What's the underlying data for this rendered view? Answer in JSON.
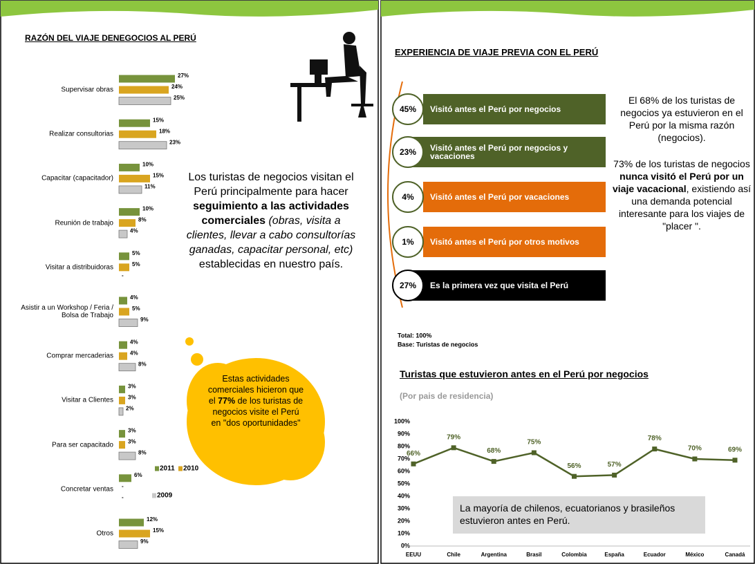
{
  "chart_data": [
    {
      "type": "hbar",
      "title": "RAZÓN DEL VIAJE DENEGOCIOS AL PERÚ",
      "categories": [
        "Supervisar obras",
        "Realizar consultorias",
        "Capacitar (capacitador)",
        "Reunión de trabajo",
        "Visitar a distribuidoras",
        "Asistir a un Workshop / Feria / Bolsa de Trabajo",
        "Comprar mercaderias",
        "Visitar a Clientes",
        "Para ser capacitado",
        "Concretar ventas",
        "Otros"
      ],
      "series": [
        {
          "name": "2011",
          "color": "#77933c",
          "values": [
            27,
            15,
            10,
            10,
            5,
            4,
            4,
            3,
            3,
            6,
            12
          ],
          "value_labels": [
            "27%",
            "15%",
            "10%",
            "10%",
            "5%",
            "4%",
            "4%",
            "3%",
            "3%",
            "6%",
            "12%"
          ]
        },
        {
          "name": "2010",
          "color": "#d9a520",
          "values": [
            24,
            18,
            15,
            8,
            5,
            5,
            4,
            3,
            3,
            null,
            15
          ],
          "value_labels": [
            "24%",
            "18%",
            "15%",
            "8%",
            "5%",
            "5%",
            "4%",
            "3%",
            "3%",
            "-",
            "15%"
          ]
        },
        {
          "name": "2009",
          "color": "#c8c8c8",
          "values": [
            25,
            23,
            11,
            4,
            null,
            9,
            8,
            2,
            8,
            null,
            9
          ],
          "value_labels": [
            "25%",
            "23%",
            "11%",
            "4%",
            "-",
            "9%",
            "8%",
            "2%",
            "8%",
            "-",
            "9%"
          ]
        }
      ]
    },
    {
      "type": "line",
      "title": "Turistas que estuvieron antes en el Perú por negocios",
      "subtitle": "(Por pais de residencia)",
      "categories": [
        "EEUU",
        "Chile",
        "Argentina",
        "Brasil",
        "Colombia",
        "España",
        "Ecuador",
        "México",
        "Canadá"
      ],
      "values": [
        66,
        79,
        68,
        75,
        56,
        57,
        78,
        70,
        69
      ],
      "value_labels": [
        "66%",
        "79%",
        "68%",
        "75%",
        "56%",
        "57%",
        "78%",
        "70%",
        "69%"
      ],
      "color": "#4f6228",
      "grid": false,
      "ylim": [
        0,
        100
      ],
      "yticks": [
        {
          "value": 0,
          "label": "0%"
        },
        {
          "value": 10,
          "label": "10%"
        },
        {
          "value": 20,
          "label": "20%"
        },
        {
          "value": 30,
          "label": "30%"
        },
        {
          "value": 40,
          "label": "40%"
        },
        {
          "value": 50,
          "label": "50%"
        },
        {
          "value": 60,
          "label": "60%"
        },
        {
          "value": 70,
          "label": "70%"
        },
        {
          "value": 80,
          "label": "80%"
        },
        {
          "value": 90,
          "label": "90%"
        },
        {
          "value": 100,
          "label": "100%"
        }
      ],
      "annotation": "La mayoría de chilenos, ecuatorianos y brasileños estuvieron antes en Perú."
    }
  ],
  "left_text": {
    "parts": [
      "Los turistas de negocios visitan el Perú principalmente para hacer ",
      "seguimiento a las actividades comerciales",
      " (obras, visita a clientes, llevar a cabo consultorías ganadas, capacitar personal, etc)",
      " establecidas en nuestro país."
    ]
  },
  "cloud": {
    "parts": [
      "Estas actividades comerciales hicieron que el ",
      "77%",
      " de los turistas de negocios visite el Perú en \"dos oportunidades\""
    ]
  },
  "experience": {
    "title": "EXPERIENCIA DE VIAJE PREVIA CON EL PERÚ",
    "items": [
      {
        "percent": "45%",
        "label": "Visitó antes el Perú por negocios",
        "color": "#4f6228"
      },
      {
        "percent": "23%",
        "label": "Visitó antes el Perú por negocios y vacaciones",
        "color": "#4f6228"
      },
      {
        "percent": "4%",
        "label": "Visitó antes el Perú por vacaciones",
        "color": "#e46c0a"
      },
      {
        "percent": "1%",
        "label": "Visitó antes el Perú por otros motivos",
        "color": "#e46c0a"
      },
      {
        "percent": "27%",
        "label": "Es la primera vez que visita el Perú",
        "color": "#000000"
      }
    ],
    "note1": "El 68% de los turistas de negocios ya estuvieron en el Perú por la misma razón (negocios).",
    "note2": [
      "73% de los turistas de negocios ",
      "nunca visitó el Perú por un viaje vacacional",
      ", existiendo así una demanda potencial interesante para los viajes de \"placer \"."
    ],
    "total": "Total: 100%",
    "base": "Base: Turistas de negocios"
  }
}
